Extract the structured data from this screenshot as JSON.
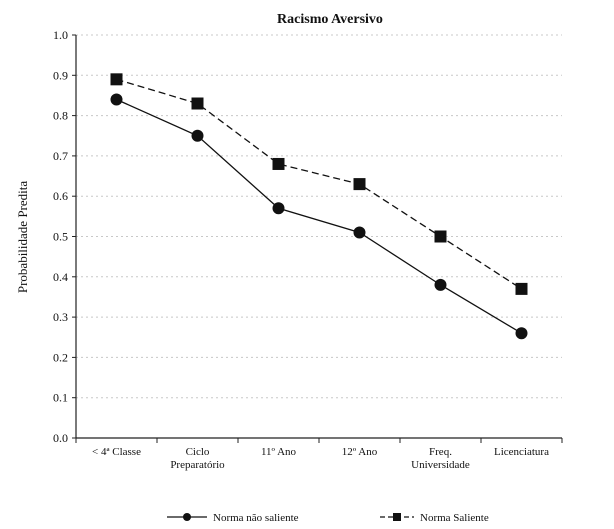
{
  "chart_data": {
    "type": "line",
    "title": "Racismo Aversivo",
    "xlabel": "",
    "ylabel": "Probabilidade Predita",
    "ylim": [
      0,
      1.0
    ],
    "yticks": [
      "0.0",
      "0.1",
      "0.2",
      "0.3",
      "0.4",
      "0.5",
      "0.6",
      "0.7",
      "0.8",
      "0.9",
      "1.0"
    ],
    "grid": "horizontal dotted",
    "legend_position": "bottom",
    "categories": [
      [
        "< 4ª Classe"
      ],
      [
        "Ciclo",
        "Preparatório"
      ],
      [
        "11º Ano"
      ],
      [
        "12º Ano"
      ],
      [
        "Freq.",
        "Universidade"
      ],
      [
        "Licenciatura"
      ]
    ],
    "series": [
      {
        "name": "Norma não saliente",
        "marker": "circle",
        "line": "solid",
        "values": [
          0.84,
          0.75,
          0.57,
          0.51,
          0.38,
          0.26
        ]
      },
      {
        "name": "Norma Saliente",
        "marker": "square",
        "line": "dashed",
        "values": [
          0.89,
          0.83,
          0.68,
          0.63,
          0.5,
          0.37
        ]
      }
    ]
  }
}
